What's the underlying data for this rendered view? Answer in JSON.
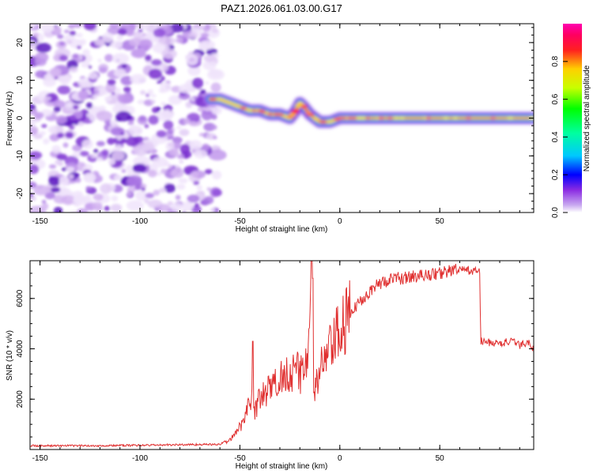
{
  "figure_title": "PAZ1.2026.061.03.00.G17",
  "chart_data": [
    {
      "type": "heatmap",
      "title": "PAZ1.2026.061.03.00.G17",
      "xlabel": "Height of straight line (km)",
      "ylabel": "Frequency (Hz)",
      "xlim": [
        -155,
        97
      ],
      "ylim": [
        -25,
        25
      ],
      "xticks": [
        -150,
        -100,
        -50,
        0,
        50
      ],
      "xtick_labels": [
        "-150",
        "-100",
        "-50",
        "0",
        "50"
      ],
      "yticks": [
        -20,
        -10,
        0,
        10,
        20
      ],
      "ytick_labels": [
        "-20",
        "-10",
        "0",
        "10",
        "20"
      ],
      "noise_region_km": [
        -155,
        -61
      ],
      "ridge": {
        "x": [
          -65,
          -60,
          -55,
          -50,
          -45,
          -40,
          -35,
          -30,
          -25,
          -22,
          -20,
          -18,
          -15,
          -10,
          -5,
          0,
          5,
          10,
          20,
          30,
          50,
          70,
          97
        ],
        "y": [
          5,
          5,
          4,
          3,
          2,
          2,
          1,
          1,
          0,
          2,
          4,
          3,
          1,
          -1,
          -1,
          0,
          0,
          0,
          0,
          0,
          0,
          0,
          0
        ],
        "peak_amplitude": 1.0
      },
      "colorbar": {
        "label": "Normalized spectral amplitude",
        "range": [
          0,
          1
        ],
        "ticks": [
          0.0,
          0.2,
          0.4,
          0.6,
          0.8
        ],
        "tick_labels": [
          "0.0",
          "0.2",
          "0.4",
          "0.6",
          "0.8"
        ]
      }
    },
    {
      "type": "line",
      "xlabel": "Height of straight line (km)",
      "ylabel": "SNR (10 * v/v)",
      "xlim": [
        -155,
        97
      ],
      "ylim": [
        0,
        7500
      ],
      "xticks": [
        -150,
        -100,
        -50,
        0,
        50
      ],
      "xtick_labels": [
        "-150",
        "-100",
        "-50",
        "0",
        "50"
      ],
      "yticks": [
        2000,
        4000,
        6000
      ],
      "ytick_labels": [
        "2000",
        "4000",
        "6000"
      ],
      "series": [
        {
          "name": "SNR",
          "color": "#e03030",
          "x": [
            -155,
            -120,
            -70,
            -60,
            -55,
            -52,
            -50,
            -48,
            -46,
            -44,
            -43.5,
            -43,
            -40,
            -35,
            -30,
            -25,
            -20,
            -16,
            -14,
            -13.5,
            -13,
            -12,
            -10,
            -5,
            0,
            5,
            10,
            15,
            20,
            25,
            30,
            40,
            50,
            55,
            60,
            65,
            68,
            70,
            70.5,
            75,
            80,
            85,
            90,
            95,
            97
          ],
          "y": [
            150,
            150,
            200,
            200,
            400,
            600,
            900,
            1300,
            1700,
            2200,
            4300,
            1500,
            2000,
            2400,
            2800,
            3200,
            3000,
            3800,
            6800,
            1600,
            2500,
            2400,
            3200,
            3900,
            4700,
            5300,
            5900,
            6300,
            6600,
            6750,
            6800,
            6900,
            7000,
            7100,
            7150,
            7100,
            7100,
            7050,
            4300,
            4250,
            4200,
            4300,
            4150,
            4250,
            4000
          ]
        }
      ]
    }
  ]
}
